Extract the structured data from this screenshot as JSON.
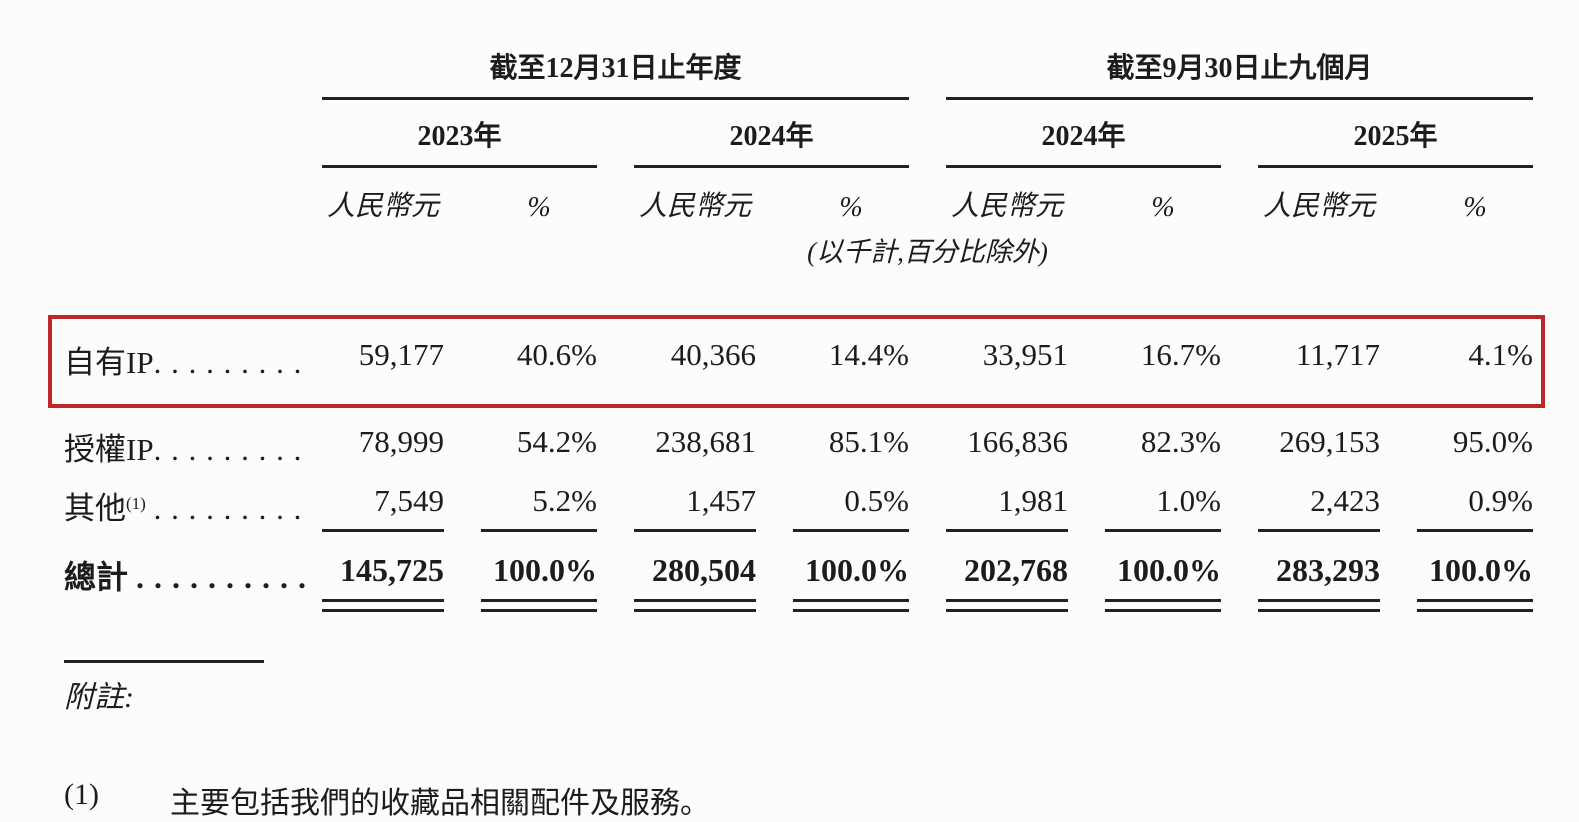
{
  "table": {
    "period_groups": [
      {
        "title": "截至12月31日止年度",
        "years": [
          {
            "label": "2023年"
          },
          {
            "label": "2024年"
          }
        ]
      },
      {
        "title": "截至9月30日止九個月",
        "years": [
          {
            "label": "2024年"
          },
          {
            "label": "2025年"
          }
        ]
      }
    ],
    "unit_amount": "人民幣元",
    "unit_percent": "%",
    "scale_note": "(以千計,百分比除外)",
    "rows": [
      {
        "label": "自有IP",
        "sup": "",
        "dots": ". . . . . . . . .",
        "highlighted": true,
        "values": [
          "59,177",
          "40.6%",
          "40,366",
          "14.4%",
          "33,951",
          "16.7%",
          "11,717",
          "4.1%"
        ]
      },
      {
        "label": "授權IP",
        "sup": "",
        "dots": ". . . . . . . . .",
        "highlighted": false,
        "values": [
          "78,999",
          "54.2%",
          "238,681",
          "85.1%",
          "166,836",
          "82.3%",
          "269,153",
          "95.0%"
        ]
      },
      {
        "label": "其他",
        "sup": "(1)",
        "dots": ". . . . . . . . .",
        "highlighted": false,
        "values": [
          "7,549",
          "5.2%",
          "1,457",
          "0.5%",
          "1,981",
          "1.0%",
          "2,423",
          "0.9%"
        ]
      }
    ],
    "total": {
      "label": "總計",
      "dots": ". . . . . . . . . .",
      "values": [
        "145,725",
        "100.0%",
        "280,504",
        "100.0%",
        "202,768",
        "100.0%",
        "283,293",
        "100.0%"
      ]
    },
    "highlight_color": "#c0272c"
  },
  "footnotes": {
    "heading": "附註:",
    "items": [
      {
        "marker": "(1)",
        "text": "主要包括我們的收藏品相關配件及服務。"
      }
    ]
  }
}
